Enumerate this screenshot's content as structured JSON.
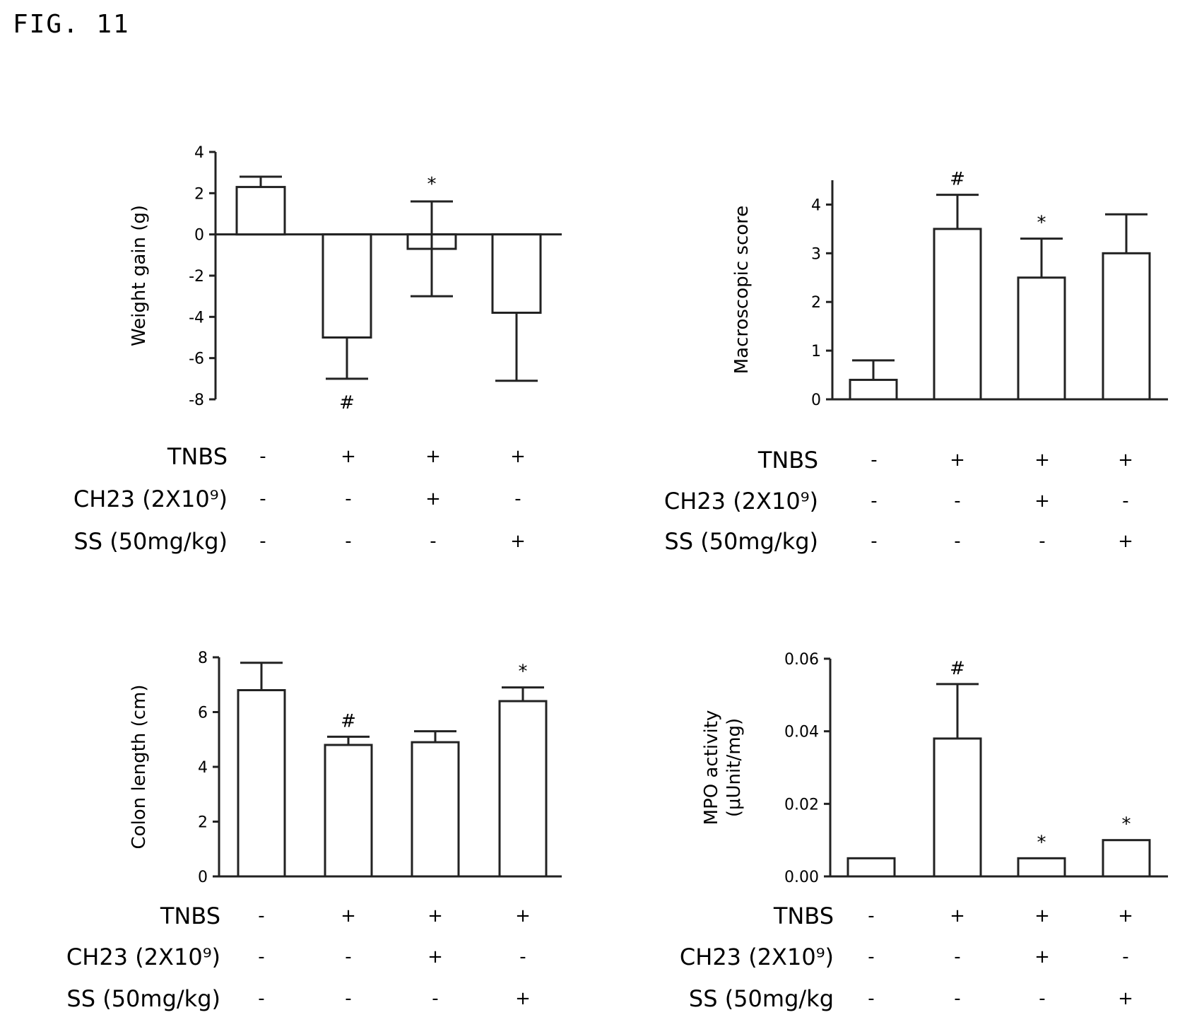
{
  "figure_label": "FIG. 11",
  "treatment_rows": [
    "TNBS",
    "CH23 (2X10⁹)",
    "SS (50mg/kg)"
  ],
  "chart_data": [
    {
      "type": "bar",
      "panel": "top-left",
      "ylabel": "Weight gain (g)",
      "ylim": [
        -8,
        4
      ],
      "yticks": [
        "4",
        "2",
        "0",
        "-2",
        "-4",
        "-6",
        "-8"
      ],
      "ytick_values": [
        4,
        2,
        0,
        -2,
        -4,
        -6,
        -8
      ],
      "values": [
        2.3,
        -5.0,
        -0.7,
        -3.8
      ],
      "errors": [
        0.5,
        2.0,
        2.3,
        3.3
      ],
      "significance": [
        "",
        "#",
        "*",
        ""
      ],
      "treatment_labels": [
        "TNBS",
        "CH23 (2X10⁹)",
        "SS (50mg/kg)"
      ],
      "treatments": {
        "TNBS": [
          "-",
          "+",
          "+",
          "+"
        ],
        "CH23": [
          "-",
          "-",
          "+",
          "-"
        ],
        "SS": [
          "-",
          "-",
          "-",
          "+"
        ]
      }
    },
    {
      "type": "bar",
      "panel": "top-right",
      "ylabel": "Macroscopic score",
      "ylim": [
        0,
        4.5
      ],
      "yticks": [
        "4",
        "3",
        "2",
        "1",
        "0"
      ],
      "ytick_values": [
        4,
        3,
        2,
        1,
        0
      ],
      "values": [
        0.4,
        3.5,
        2.5,
        3.0
      ],
      "errors": [
        0.4,
        0.7,
        0.8,
        0.8
      ],
      "significance": [
        "",
        "#",
        "*",
        ""
      ],
      "treatment_labels": [
        "TNBS",
        "CH23 (2X10⁹)",
        "SS (50mg/kg)"
      ],
      "treatments": {
        "TNBS": [
          "-",
          "+",
          "+",
          "+"
        ],
        "CH23": [
          "-",
          "-",
          "+",
          "-"
        ],
        "SS": [
          "-",
          "-",
          "-",
          "+"
        ]
      }
    },
    {
      "type": "bar",
      "panel": "bottom-left",
      "ylabel": "Colon length (cm)",
      "ylim": [
        0,
        8
      ],
      "yticks": [
        "8",
        "6",
        "4",
        "2",
        "0"
      ],
      "ytick_values": [
        8,
        6,
        4,
        2,
        0
      ],
      "values": [
        6.8,
        4.8,
        4.9,
        6.4
      ],
      "errors": [
        1.0,
        0.3,
        0.4,
        0.5
      ],
      "significance": [
        "",
        "#",
        "",
        "*"
      ],
      "treatment_labels": [
        "TNBS",
        "CH23 (2X10⁹)",
        "SS (50mg/kg)"
      ],
      "treatments": {
        "TNBS": [
          "-",
          "+",
          "+",
          "+"
        ],
        "CH23": [
          "-",
          "-",
          "+",
          "-"
        ],
        "SS": [
          "-",
          "-",
          "-",
          "+"
        ]
      }
    },
    {
      "type": "bar",
      "panel": "bottom-right",
      "ylabel": "MPO activity (μUnit/mg)",
      "ylim": [
        0,
        0.06
      ],
      "yticks": [
        "0.06",
        "0.04",
        "0.02",
        "0.00"
      ],
      "ytick_values": [
        0.06,
        0.04,
        0.02,
        0.0
      ],
      "values": [
        0.005,
        0.038,
        0.005,
        0.01
      ],
      "errors": [
        0.0,
        0.015,
        0.0,
        0.0
      ],
      "significance": [
        "",
        "#",
        "*",
        "*"
      ],
      "treatment_labels": [
        "TNBS",
        "CH23 (2X10⁹)",
        "SS (50mg/kg"
      ],
      "treatments": {
        "TNBS": [
          "-",
          "+",
          "+",
          "+"
        ],
        "CH23": [
          "-",
          "-",
          "+",
          "-"
        ],
        "SS": [
          "-",
          "-",
          "-",
          "+"
        ]
      }
    }
  ]
}
